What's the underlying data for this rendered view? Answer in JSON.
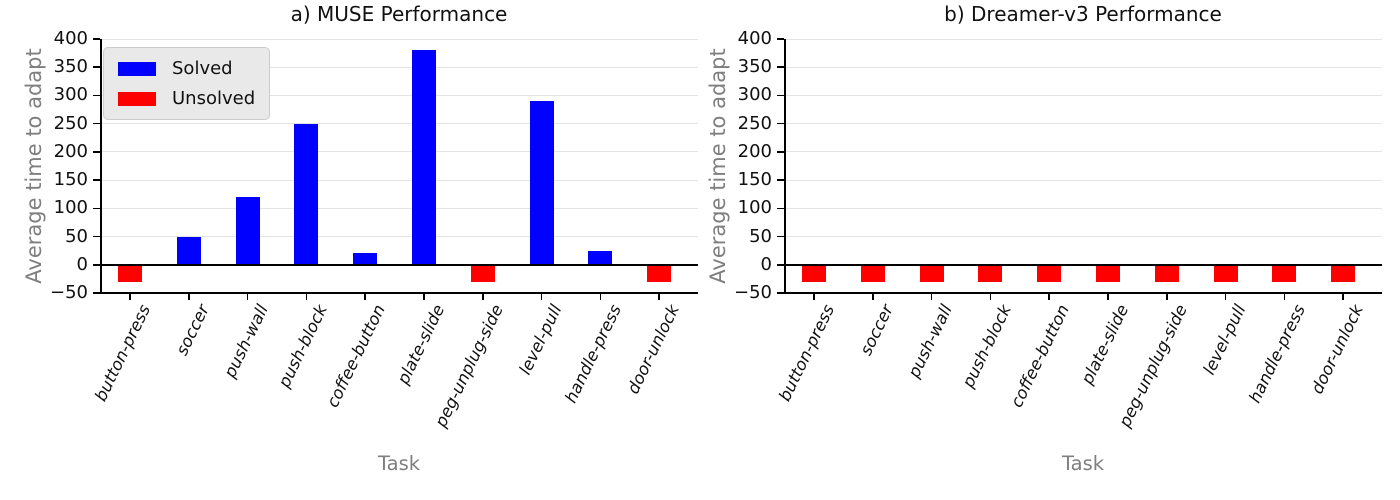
{
  "colors": {
    "solved": "#0000ff",
    "unsolved": "#ff0000",
    "grid": "#e4e4e4",
    "axis": "#000000",
    "label_gray": "#7f7f7f",
    "legend_bg": "#e9e9e9"
  },
  "legend": {
    "items": [
      {
        "label": "Solved",
        "key": "solved"
      },
      {
        "label": "Unsolved",
        "key": "unsolved"
      }
    ]
  },
  "chart_data": [
    {
      "type": "bar",
      "title": "a) MUSE Performance",
      "xlabel": "Task",
      "ylabel": "Average time to adapt",
      "ylim": [
        -50,
        400
      ],
      "yticks": [
        -50,
        0,
        50,
        100,
        150,
        200,
        250,
        300,
        350,
        400
      ],
      "grid": "horizontal",
      "legend_position": "upper-left",
      "has_legend": true,
      "categories": [
        "button-press",
        "soccer",
        "push-wall",
        "push-block",
        "coffee-button",
        "plate-slide",
        "peg-unplug-side",
        "level-pull",
        "handle-press",
        "door-unlock"
      ],
      "bars": [
        {
          "task": "button-press",
          "value": -30,
          "status": "Unsolved"
        },
        {
          "task": "soccer",
          "value": 50,
          "status": "Solved"
        },
        {
          "task": "push-wall",
          "value": 120,
          "status": "Solved"
        },
        {
          "task": "push-block",
          "value": 250,
          "status": "Solved"
        },
        {
          "task": "coffee-button",
          "value": 20,
          "status": "Solved"
        },
        {
          "task": "plate-slide",
          "value": 380,
          "status": "Solved"
        },
        {
          "task": "peg-unplug-side",
          "value": -30,
          "status": "Unsolved"
        },
        {
          "task": "level-pull",
          "value": 290,
          "status": "Solved"
        },
        {
          "task": "handle-press",
          "value": 25,
          "status": "Solved"
        },
        {
          "task": "door-unlock",
          "value": -30,
          "status": "Unsolved"
        }
      ]
    },
    {
      "type": "bar",
      "title": "b) Dreamer-v3 Performance",
      "xlabel": "Task",
      "ylabel": "Average time to adapt",
      "ylim": [
        -50,
        400
      ],
      "yticks": [
        -50,
        0,
        50,
        100,
        150,
        200,
        250,
        300,
        350,
        400
      ],
      "grid": "horizontal",
      "legend_position": "none",
      "has_legend": false,
      "categories": [
        "button-press",
        "soccer",
        "push-wall",
        "push-block",
        "coffee-button",
        "plate-slide",
        "peg-unplug-side",
        "level-pull",
        "handle-press",
        "door-unlock"
      ],
      "bars": [
        {
          "task": "button-press",
          "value": -30,
          "status": "Unsolved"
        },
        {
          "task": "soccer",
          "value": -30,
          "status": "Unsolved"
        },
        {
          "task": "push-wall",
          "value": -30,
          "status": "Unsolved"
        },
        {
          "task": "push-block",
          "value": -30,
          "status": "Unsolved"
        },
        {
          "task": "coffee-button",
          "value": -30,
          "status": "Unsolved"
        },
        {
          "task": "plate-slide",
          "value": -30,
          "status": "Unsolved"
        },
        {
          "task": "peg-unplug-side",
          "value": -30,
          "status": "Unsolved"
        },
        {
          "task": "level-pull",
          "value": -30,
          "status": "Unsolved"
        },
        {
          "task": "handle-press",
          "value": -30,
          "status": "Unsolved"
        },
        {
          "task": "door-unlock",
          "value": -30,
          "status": "Unsolved"
        }
      ]
    }
  ]
}
